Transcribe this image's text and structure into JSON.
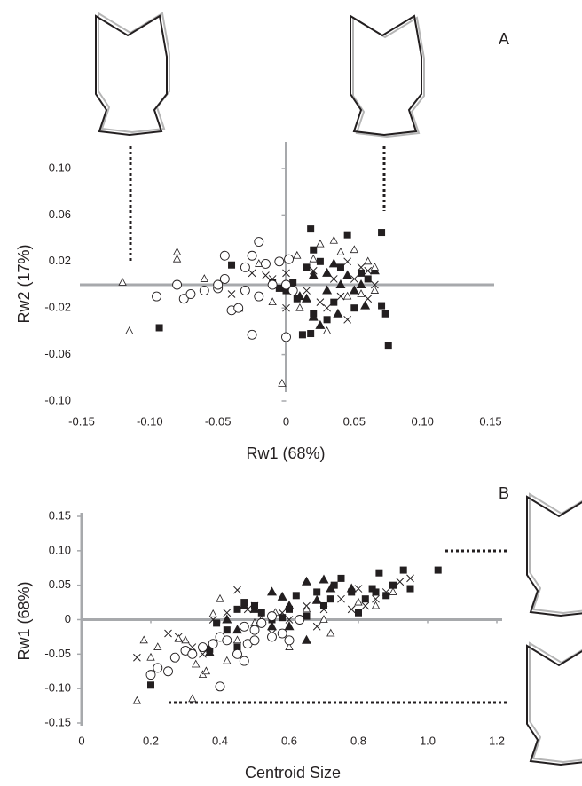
{
  "chart_data": [
    {
      "type": "scatter",
      "panel_label": "A",
      "x_label": "Rw1 (68%)",
      "y_label": "Rw2 (17%)",
      "xlim": [
        -0.15,
        0.15
      ],
      "ylim": [
        -0.1,
        0.1
      ],
      "xticks": [
        -0.15,
        {
          "value": -0.1,
          "label": "-0.10"
        },
        -0.05,
        0,
        0.05,
        {
          "value": 0.1,
          "label": "0.10"
        },
        0.15
      ],
      "yticks": [
        {
          "value": -0.1,
          "label": "-0.10"
        },
        {
          "value": -0.06,
          "label": "-0.06"
        },
        {
          "value": -0.02,
          "label": "-0.02"
        },
        {
          "value": 0.02,
          "label": "0.02"
        },
        {
          "value": 0.06,
          "label": "0.06"
        },
        {
          "value": 0.1,
          "label": "0.10"
        }
      ],
      "series": [
        {
          "marker": "filled-square",
          "color": "#231f20",
          "x": [
            -0.093,
            0.018,
            0.02,
            0.015,
            -0.005,
            0.07,
            0.075,
            0.07,
            0.073,
            0.045,
            0.02,
            0.012,
            0.018,
            0.005,
            -0.01,
            0.0,
            0.035,
            0.04,
            0.05,
            0.06,
            0.025,
            -0.04,
            0.03,
            0.008,
            -0.005,
            0.055
          ],
          "values": [
            -0.037,
            0.048,
            0.03,
            0.015,
            0.02,
            0.045,
            -0.052,
            -0.018,
            -0.025,
            0.043,
            -0.025,
            -0.043,
            -0.042,
            0.002,
            0.002,
            -0.005,
            -0.015,
            0.015,
            -0.02,
            0.005,
            0.02,
            0.017,
            -0.03,
            -0.012,
            -0.003,
            0.01
          ]
        },
        {
          "marker": "filled-triangle",
          "color": "#231f20",
          "x": [
            -0.035,
            0.015,
            0.03,
            0.035,
            0.04,
            0.05,
            0.058,
            0.065,
            0.02,
            0.025,
            0.038,
            0.045,
            0.03,
            0.055,
            0.01,
            0.02
          ],
          "values": [
            -0.02,
            -0.012,
            0.01,
            0.018,
            0.0,
            -0.005,
            -0.018,
            0.012,
            -0.028,
            -0.035,
            -0.025,
            0.008,
            -0.005,
            0.0,
            -0.01,
            0.008
          ]
        },
        {
          "marker": "cross",
          "color": "#231f20",
          "x": [
            -0.04,
            -0.02,
            -0.025,
            0.0,
            0.04,
            0.055,
            0.06,
            0.065,
            0.045,
            0.05,
            0.03,
            0.02,
            0.035,
            0.015,
            0.06,
            -0.01,
            0.0,
            0.025,
            0.045,
            -0.015
          ],
          "values": [
            -0.008,
            -0.01,
            0.01,
            -0.02,
            -0.01,
            0.015,
            0.012,
            0.0,
            0.02,
            0.005,
            -0.02,
            0.012,
            0.005,
            -0.005,
            -0.012,
            0.005,
            0.01,
            -0.015,
            -0.03,
            0.008
          ]
        },
        {
          "marker": "open-triangle",
          "color": "#231f20",
          "x": [
            -0.115,
            -0.12,
            -0.08,
            -0.08,
            0.035,
            0.05,
            0.06,
            0.065,
            -0.003,
            0.0,
            -0.02,
            -0.03,
            0.01,
            0.04,
            0.02,
            0.055,
            -0.05,
            0.03,
            -0.01,
            0.045,
            0.065,
            -0.06,
            0.008,
            0.025
          ],
          "values": [
            -0.04,
            0.002,
            0.028,
            0.022,
            0.038,
            0.03,
            0.02,
            0.015,
            -0.085,
            0.0,
            0.018,
            -0.005,
            -0.02,
            0.028,
            0.022,
            -0.008,
            0.0,
            -0.04,
            -0.015,
            -0.01,
            -0.005,
            0.005,
            0.025,
            0.035
          ]
        },
        {
          "marker": "open-circle",
          "color": "#231f20",
          "x": [
            -0.095,
            -0.08,
            -0.075,
            -0.07,
            -0.06,
            -0.05,
            -0.05,
            -0.045,
            -0.04,
            -0.035,
            -0.03,
            -0.025,
            -0.02,
            -0.025,
            -0.015,
            -0.01,
            -0.005,
            0.0,
            0.0,
            0.005,
            -0.03,
            -0.045,
            -0.02,
            0.002
          ],
          "values": [
            -0.01,
            0.0,
            -0.012,
            -0.008,
            -0.005,
            -0.003,
            0.0,
            0.025,
            -0.022,
            -0.02,
            0.015,
            0.025,
            0.037,
            -0.043,
            0.018,
            0.0,
            0.02,
            -0.045,
            0.0,
            -0.005,
            -0.005,
            0.005,
            -0.01,
            0.022
          ]
        }
      ]
    },
    {
      "type": "scatter",
      "panel_label": "B",
      "x_label": "Centroid Size",
      "y_label": "Rw1 (68%)",
      "xlim": [
        0,
        1.2
      ],
      "ylim": [
        -0.15,
        0.15
      ],
      "xticks": [
        0,
        0.2,
        0.4,
        0.6,
        0.8,
        {
          "value": 1,
          "label": "1.0"
        },
        1.2
      ],
      "yticks": [
        -0.15,
        {
          "value": -0.1,
          "label": "-0.10"
        },
        -0.05,
        0,
        0.05,
        {
          "value": 0.1,
          "label": "0.10"
        },
        0.15
      ],
      "series": [
        {
          "marker": "filled-square",
          "color": "#231f20",
          "x": [
            0.2,
            0.37,
            0.39,
            0.42,
            0.45,
            0.5,
            0.52,
            0.55,
            0.6,
            0.62,
            0.65,
            0.68,
            0.7,
            0.73,
            0.75,
            0.78,
            0.8,
            0.82,
            0.84,
            0.85,
            0.86,
            0.88,
            0.9,
            0.93,
            0.95,
            1.03,
            0.47,
            0.45,
            0.58,
            0.72
          ],
          "values": [
            -0.095,
            -0.043,
            -0.005,
            -0.015,
            -0.04,
            0.02,
            0.01,
            0.0,
            0.015,
            0.035,
            0.005,
            0.04,
            0.02,
            0.05,
            0.06,
            0.04,
            0.01,
            0.03,
            0.045,
            0.04,
            0.068,
            0.035,
            0.05,
            0.072,
            0.045,
            0.072,
            0.025,
            0.015,
            0.003,
            0.03
          ]
        },
        {
          "marker": "filled-triangle",
          "color": "#231f20",
          "x": [
            0.37,
            0.42,
            0.45,
            0.47,
            0.5,
            0.55,
            0.58,
            0.6,
            0.65,
            0.68,
            0.7,
            0.72,
            0.6,
            0.55,
            0.65,
            0.78
          ],
          "values": [
            -0.048,
            0.0,
            -0.015,
            0.02,
            0.015,
            -0.01,
            0.033,
            0.02,
            0.055,
            0.028,
            0.058,
            0.045,
            -0.01,
            0.04,
            -0.03,
            0.045
          ]
        },
        {
          "marker": "cross",
          "color": "#231f20",
          "x": [
            0.16,
            0.25,
            0.28,
            0.3,
            0.32,
            0.35,
            0.4,
            0.42,
            0.45,
            0.48,
            0.5,
            0.55,
            0.58,
            0.6,
            0.65,
            0.7,
            0.75,
            0.8,
            0.82,
            0.85,
            0.88,
            0.92,
            0.95,
            0.38,
            0.68,
            0.78
          ],
          "values": [
            -0.055,
            -0.02,
            -0.025,
            -0.045,
            -0.04,
            -0.05,
            -0.025,
            0.01,
            0.043,
            0.015,
            0.02,
            -0.02,
            0.01,
            0.0,
            0.02,
            0.015,
            0.03,
            0.045,
            0.02,
            0.03,
            0.04,
            0.055,
            0.06,
            0.0,
            -0.01,
            0.015
          ]
        },
        {
          "marker": "open-triangle",
          "color": "#231f20",
          "x": [
            0.16,
            0.18,
            0.2,
            0.22,
            0.28,
            0.3,
            0.32,
            0.33,
            0.35,
            0.36,
            0.38,
            0.4,
            0.45,
            0.5,
            0.52,
            0.6,
            0.65,
            0.72,
            0.8,
            0.85,
            0.42,
            0.56,
            0.7,
            0.9
          ],
          "values": [
            -0.118,
            -0.03,
            -0.055,
            -0.04,
            -0.028,
            -0.03,
            -0.115,
            -0.065,
            -0.08,
            -0.075,
            0.008,
            0.03,
            -0.03,
            -0.005,
            0.0,
            -0.04,
            0.015,
            -0.02,
            0.025,
            0.02,
            -0.06,
            0.01,
            0.0,
            0.04
          ]
        },
        {
          "marker": "open-circle",
          "color": "#231f20",
          "x": [
            0.2,
            0.22,
            0.25,
            0.27,
            0.3,
            0.32,
            0.35,
            0.38,
            0.4,
            0.4,
            0.42,
            0.45,
            0.47,
            0.48,
            0.5,
            0.5,
            0.52,
            0.55,
            0.58,
            0.6,
            0.63,
            0.47,
            0.55
          ],
          "values": [
            -0.08,
            -0.07,
            -0.075,
            -0.055,
            -0.045,
            -0.05,
            -0.04,
            -0.035,
            -0.097,
            -0.025,
            -0.03,
            -0.05,
            -0.06,
            -0.035,
            -0.03,
            -0.015,
            -0.005,
            -0.025,
            -0.02,
            -0.03,
            0.0,
            -0.01,
            0.005
          ]
        }
      ]
    }
  ]
}
